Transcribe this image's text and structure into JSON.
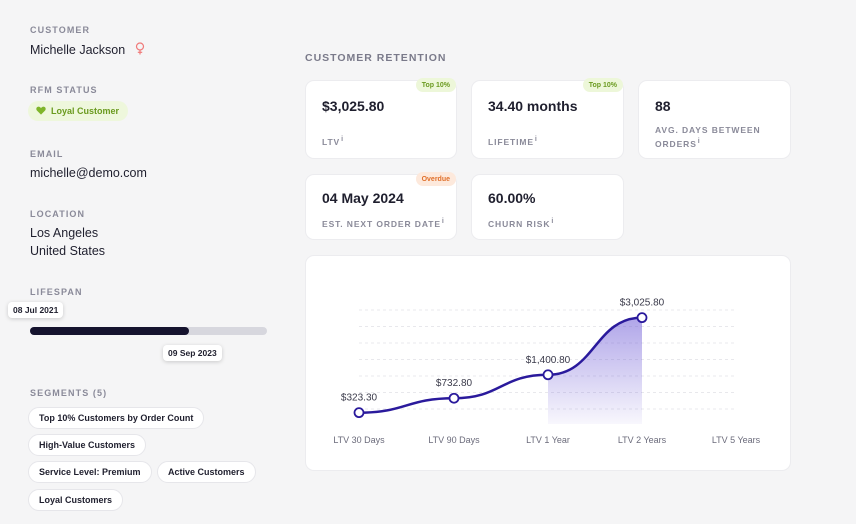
{
  "customer": {
    "label": "CUSTOMER",
    "name": "Michelle Jackson",
    "gender_icon": "female-icon"
  },
  "rfm": {
    "label": "RFM STATUS",
    "status": "Loyal Customer",
    "icon": "heart-icon",
    "color": "#7fb52a"
  },
  "email": {
    "label": "EMAIL",
    "value": "michelle@demo.com"
  },
  "location": {
    "label": "LOCATION",
    "city": "Los Angeles",
    "country": "United States"
  },
  "lifespan": {
    "label": "LIFESPAN",
    "start": "08 Jul 2021",
    "end": "09 Sep 2023",
    "progress": 0.67
  },
  "segments": {
    "label": "SEGMENTS (5)",
    "items": [
      "Top 10% Customers by Order Count",
      "High-Value Customers",
      "Service Level: Premium",
      "Active Customers",
      "Loyal Customers"
    ]
  },
  "retention": {
    "title": "CUSTOMER RETENTION",
    "cards": [
      {
        "value": "$3,025.80",
        "label": "LTV",
        "badge": "Top 10%"
      },
      {
        "value": "34.40 months",
        "label": "LIFETIME",
        "badge": "Top 10%"
      },
      {
        "value": "88",
        "label_line1": "AVG. DAYS BETWEEN",
        "label_line2": "ORDERS"
      },
      {
        "value": "04 May 2024",
        "label": "EST. NEXT ORDER DATE",
        "badge": "Overdue"
      },
      {
        "value": "60.00%",
        "label": "CHURN RISK"
      }
    ],
    "info_glyph": "i"
  },
  "chart_data": {
    "type": "line",
    "categories": [
      "LTV 30 Days",
      "LTV 90 Days",
      "LTV 1 Year",
      "LTV 2 Years",
      "LTV 5 Years"
    ],
    "values": [
      323.3,
      732.8,
      1400.8,
      3025.8,
      null
    ],
    "data_labels": [
      "$323.30",
      "$732.80",
      "$1,400.80",
      "$3,025.80",
      ""
    ],
    "ylim": [
      0,
      3300
    ],
    "grid": true,
    "line_color": "#2a1a9c"
  }
}
